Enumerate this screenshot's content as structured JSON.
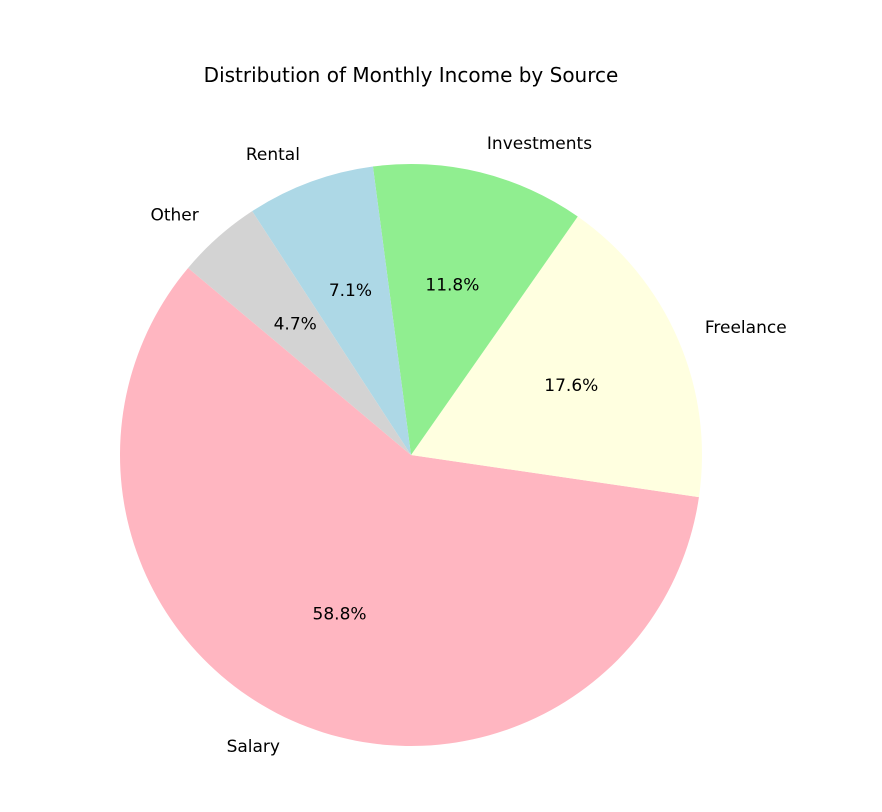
{
  "chart_data": {
    "type": "pie",
    "title": "Distribution of Monthly Income by Source",
    "slices": [
      {
        "label": "Salary",
        "value": 58.8,
        "pct_label": "58.8%",
        "color": "#ffb6c1"
      },
      {
        "label": "Freelance",
        "value": 17.6,
        "pct_label": "17.6%",
        "color": "#ffffe0"
      },
      {
        "label": "Investments",
        "value": 11.8,
        "pct_label": "11.8%",
        "color": "#90ee90"
      },
      {
        "label": "Rental",
        "value": 7.1,
        "pct_label": "7.1%",
        "color": "#add8e6"
      },
      {
        "label": "Other",
        "value": 4.7,
        "pct_label": "4.7%",
        "color": "#d3d3d3"
      }
    ],
    "start_angle_deg": 140,
    "direction": "counterclockwise",
    "legend": "none"
  }
}
